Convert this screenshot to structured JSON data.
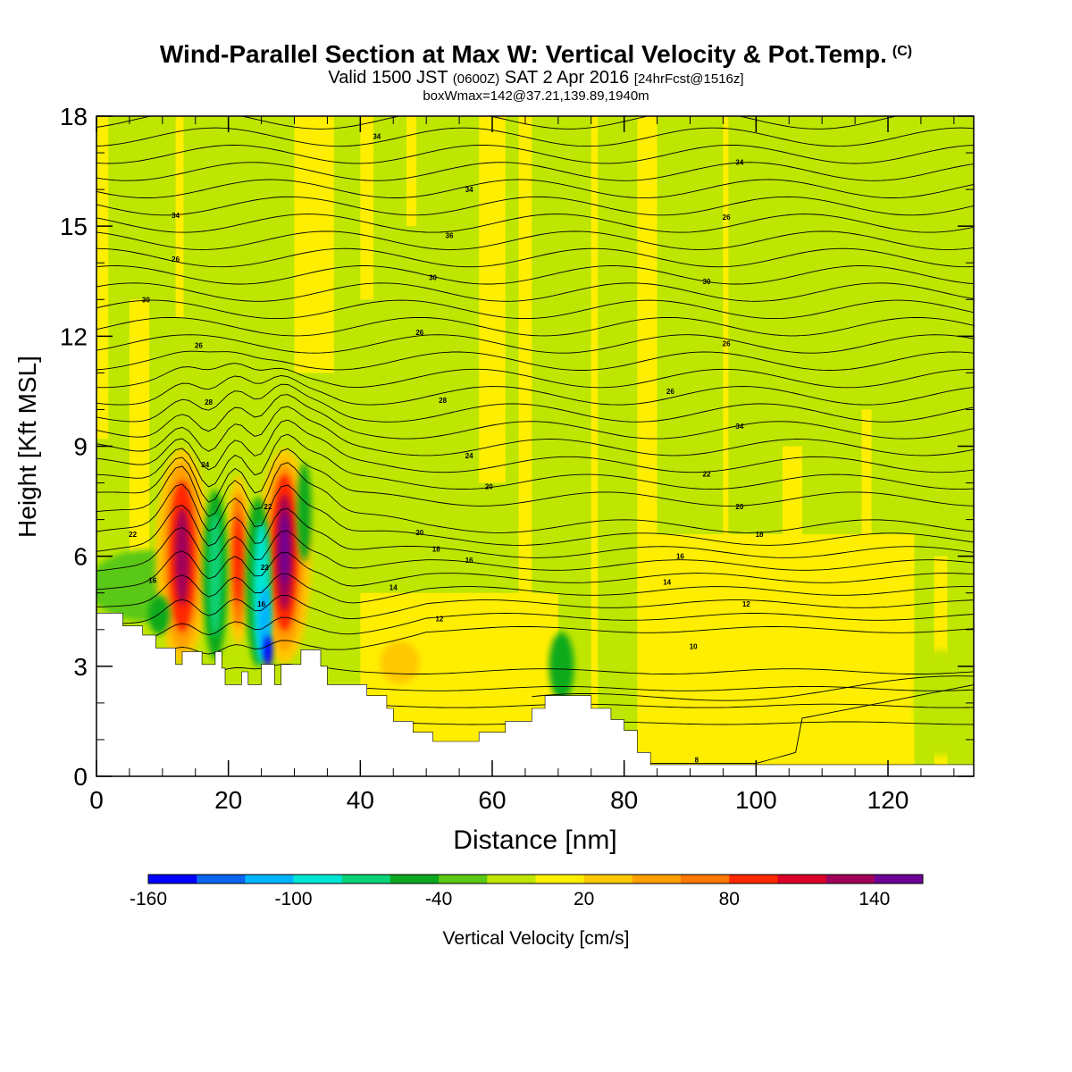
{
  "title": {
    "main": "Wind-Parallel Section at Max W: Vertical Velocity & Pot.Temp.",
    "copyright": "(C)",
    "valid_prefix": "Valid 1500 JST",
    "valid_utc": "(0600Z)",
    "valid_date": "SAT 2 Apr 2016",
    "forecast": "[24hrFcst@1516z]",
    "boxwmax": "boxWmax=142@37.21,139.89,1940m"
  },
  "chart_data": {
    "type": "heatmap",
    "description_free": true,
    "xlabel": "Distance [nm]",
    "ylabel": "Height [Kft MSL]",
    "xlim": [
      0,
      133
    ],
    "ylim": [
      0,
      18
    ],
    "xticks": [
      0,
      20,
      40,
      60,
      80,
      100,
      120
    ],
    "yticks": [
      0,
      3,
      6,
      9,
      12,
      15,
      18
    ],
    "grid": false,
    "colorbar": {
      "label": "Vertical Velocity [cm/s]",
      "tick_labels": [
        "-160",
        "-100",
        "-40",
        "20",
        "80",
        "140"
      ],
      "tick_values": [
        -160,
        -100,
        -40,
        20,
        80,
        140
      ],
      "range": [
        -160,
        160
      ],
      "colors": [
        "#0000ff",
        "#0a64f0",
        "#00b4ff",
        "#00e6d2",
        "#0ad278",
        "#0aaa1e",
        "#5ac814",
        "#bee600",
        "#ffee00",
        "#ffc800",
        "#ffa000",
        "#ff7800",
        "#ff2800",
        "#dc0028",
        "#a0005a",
        "#6e0096"
      ],
      "placement": "bottom"
    },
    "terrain_kft": [
      [
        0,
        4.45
      ],
      [
        4,
        4.45
      ],
      [
        4,
        4.1
      ],
      [
        7,
        4.1
      ],
      [
        7,
        3.85
      ],
      [
        9,
        3.85
      ],
      [
        9,
        3.5
      ],
      [
        11,
        3.5
      ],
      [
        11,
        3.5
      ],
      [
        12,
        3.5
      ],
      [
        12,
        3.05
      ],
      [
        13,
        3.05
      ],
      [
        13,
        3.4
      ],
      [
        16,
        3.4
      ],
      [
        16,
        3.05
      ],
      [
        18,
        3.05
      ],
      [
        18,
        3.4
      ],
      [
        19,
        3.4
      ],
      [
        19,
        2.95
      ],
      [
        19.5,
        2.95
      ],
      [
        19.5,
        2.5
      ],
      [
        22,
        2.5
      ],
      [
        22,
        2.85
      ],
      [
        23,
        2.85
      ],
      [
        23,
        2.5
      ],
      [
        25,
        2.5
      ],
      [
        25,
        3.05
      ],
      [
        27,
        3.05
      ],
      [
        27,
        2.5
      ],
      [
        28,
        2.5
      ],
      [
        28,
        3.05
      ],
      [
        31,
        3.05
      ],
      [
        31,
        3.45
      ],
      [
        34,
        3.45
      ],
      [
        34,
        3.0
      ],
      [
        35,
        3.0
      ],
      [
        35,
        2.5
      ],
      [
        41,
        2.5
      ],
      [
        41,
        2.2
      ],
      [
        44,
        2.2
      ],
      [
        44,
        1.85
      ],
      [
        45,
        1.85
      ],
      [
        45,
        1.5
      ],
      [
        48,
        1.5
      ],
      [
        48,
        1.2
      ],
      [
        51,
        1.2
      ],
      [
        51,
        0.95
      ],
      [
        58,
        0.95
      ],
      [
        58,
        1.2
      ],
      [
        62,
        1.2
      ],
      [
        62,
        1.5
      ],
      [
        66,
        1.5
      ],
      [
        66,
        1.85
      ],
      [
        68,
        1.85
      ],
      [
        68,
        2.2
      ],
      [
        75,
        2.2
      ],
      [
        75,
        1.85
      ],
      [
        78,
        1.85
      ],
      [
        78,
        1.55
      ],
      [
        80,
        1.55
      ],
      [
        80,
        1.25
      ],
      [
        82,
        1.25
      ],
      [
        82,
        0.65
      ],
      [
        84,
        0.65
      ],
      [
        84,
        0.32
      ],
      [
        133,
        0.32
      ]
    ],
    "contour_labels": [
      {
        "x": 42.5,
        "y": 17.45,
        "text": "34"
      },
      {
        "x": 56.5,
        "y": 16.0,
        "text": "34"
      },
      {
        "x": 97.5,
        "y": 16.75,
        "text": "34"
      },
      {
        "x": 12.0,
        "y": 15.3,
        "text": "34"
      },
      {
        "x": 53.5,
        "y": 14.75,
        "text": "36"
      },
      {
        "x": 95.5,
        "y": 15.25,
        "text": "26"
      },
      {
        "x": 12.0,
        "y": 14.1,
        "text": "26"
      },
      {
        "x": 51.0,
        "y": 13.6,
        "text": "30"
      },
      {
        "x": 92.5,
        "y": 13.5,
        "text": "30"
      },
      {
        "x": 7.5,
        "y": 13.0,
        "text": "30"
      },
      {
        "x": 49.0,
        "y": 12.1,
        "text": "26"
      },
      {
        "x": 95.5,
        "y": 11.8,
        "text": "26"
      },
      {
        "x": 15.5,
        "y": 11.75,
        "text": "26"
      },
      {
        "x": 87.0,
        "y": 10.5,
        "text": "26"
      },
      {
        "x": 17.0,
        "y": 10.2,
        "text": "28"
      },
      {
        "x": 52.5,
        "y": 10.25,
        "text": "28"
      },
      {
        "x": 97.5,
        "y": 9.55,
        "text": "34"
      },
      {
        "x": 56.5,
        "y": 8.75,
        "text": "24"
      },
      {
        "x": 16.5,
        "y": 8.5,
        "text": "24"
      },
      {
        "x": 92.5,
        "y": 8.25,
        "text": "22"
      },
      {
        "x": 59.5,
        "y": 7.9,
        "text": "20"
      },
      {
        "x": 26.0,
        "y": 7.35,
        "text": "22"
      },
      {
        "x": 97.5,
        "y": 7.35,
        "text": "20"
      },
      {
        "x": 5.5,
        "y": 6.6,
        "text": "22"
      },
      {
        "x": 49.0,
        "y": 6.65,
        "text": "20"
      },
      {
        "x": 100.5,
        "y": 6.6,
        "text": "18"
      },
      {
        "x": 51.5,
        "y": 6.2,
        "text": "18"
      },
      {
        "x": 56.5,
        "y": 5.9,
        "text": "16"
      },
      {
        "x": 88.5,
        "y": 6.0,
        "text": "16"
      },
      {
        "x": 25.5,
        "y": 5.7,
        "text": "22"
      },
      {
        "x": 8.5,
        "y": 5.35,
        "text": "16"
      },
      {
        "x": 45.0,
        "y": 5.15,
        "text": "14"
      },
      {
        "x": 86.5,
        "y": 5.3,
        "text": "14"
      },
      {
        "x": 25.0,
        "y": 4.7,
        "text": "16"
      },
      {
        "x": 98.5,
        "y": 4.7,
        "text": "12"
      },
      {
        "x": 52.0,
        "y": 4.3,
        "text": "12"
      },
      {
        "x": 90.5,
        "y": 3.55,
        "text": "10"
      },
      {
        "x": 91.0,
        "y": 0.45,
        "text": "8"
      }
    ]
  }
}
